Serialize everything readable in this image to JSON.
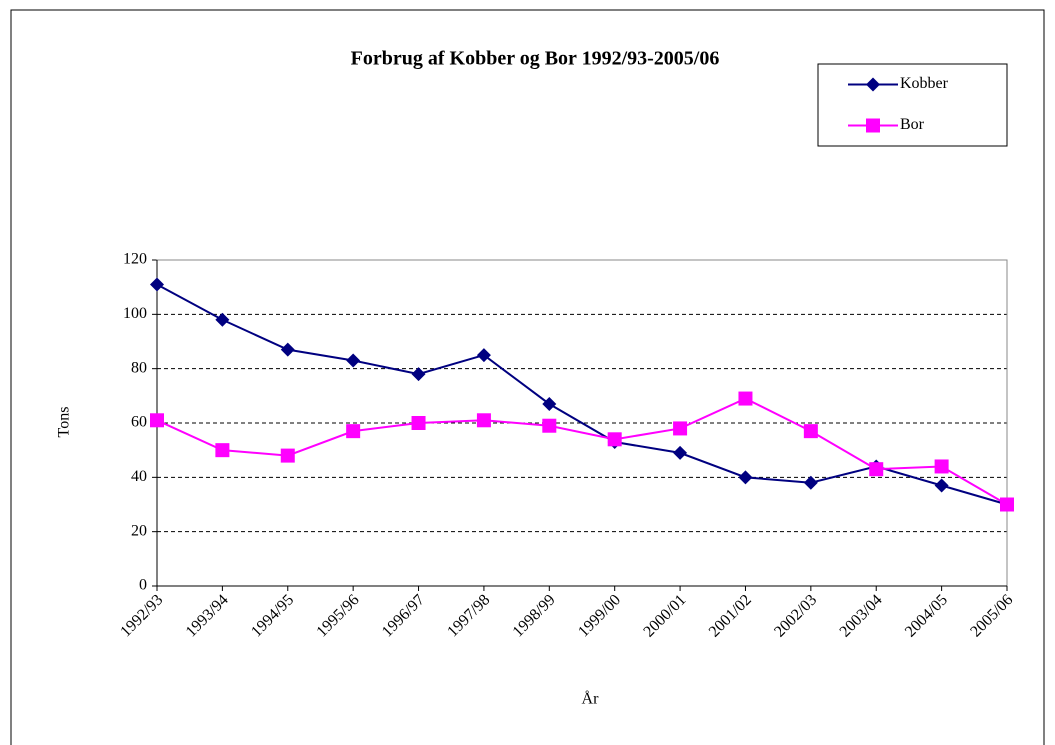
{
  "chart_data": {
    "type": "line",
    "title": "Forbrug af Kobber og Bor 1992/93-2005/06",
    "x_label": "År",
    "y_label": "Tons",
    "categories": [
      "1992/93",
      "1993/94",
      "1994/95",
      "1995/96",
      "1996/97",
      "1997/98",
      "1998/99",
      "1999/00",
      "2000/01",
      "2001/02",
      "2002/03",
      "2003/04",
      "2004/05",
      "2005/06"
    ],
    "series": [
      {
        "name": "Kobber",
        "color": "#000080",
        "marker": "diamond",
        "values": [
          111,
          98,
          87,
          83,
          78,
          85,
          67,
          53,
          49,
          40,
          38,
          44,
          37,
          30
        ]
      },
      {
        "name": "Bor",
        "color": "#ff00ff",
        "marker": "square",
        "values": [
          61,
          50,
          48,
          57,
          60,
          61,
          59,
          54,
          58,
          69,
          57,
          43,
          44,
          30
        ]
      }
    ],
    "ylim": [
      0,
      120
    ],
    "yticks": [
      0,
      20,
      40,
      60,
      80,
      100,
      120
    ],
    "grid": true,
    "legend": "top-right"
  }
}
